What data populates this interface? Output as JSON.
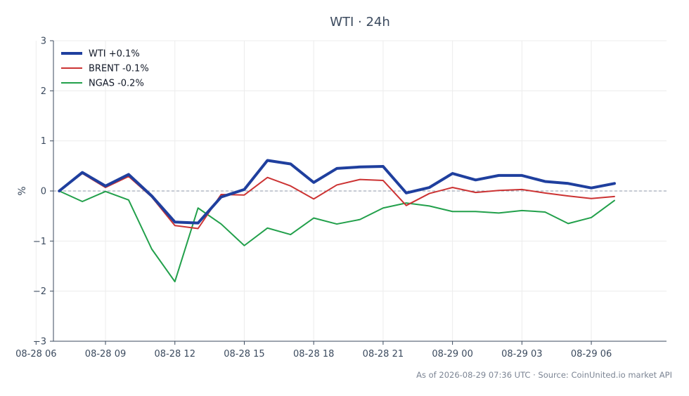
{
  "chart_data": {
    "type": "line",
    "title": "WTI · 24h",
    "ylabel": "%",
    "xlabel": "",
    "ylim": [
      -3,
      3
    ],
    "yticks": [
      3,
      2,
      1,
      0,
      -1,
      -2,
      -3
    ],
    "ytick_labels": [
      "3",
      "2",
      "1",
      "0",
      "−1",
      "−2",
      "−3"
    ],
    "xlim": [
      6.75,
      33.25
    ],
    "xticks": [
      6,
      9,
      12,
      15,
      18,
      21,
      24,
      27,
      30
    ],
    "xtick_labels": [
      "08-28 06",
      "08-28 09",
      "08-28 12",
      "08-28 15",
      "08-28 18",
      "08-28 21",
      "08-29 00",
      "08-29 03",
      "08-29 06"
    ],
    "x": [
      7,
      8,
      9,
      10,
      11,
      12,
      13,
      14,
      15,
      16,
      17,
      18,
      19,
      20,
      21,
      22,
      23,
      24,
      25,
      26,
      27,
      28,
      29,
      30,
      31
    ],
    "grid": true,
    "zero_line": true,
    "legend_position": "top-left",
    "series": [
      {
        "name": "WTI +0.1%",
        "color": "#1f3f9e",
        "values": [
          0.0,
          0.37,
          0.1,
          0.33,
          -0.1,
          -0.62,
          -0.64,
          -0.12,
          0.03,
          0.61,
          0.54,
          0.17,
          0.45,
          0.48,
          0.49,
          -0.04,
          0.07,
          0.35,
          0.22,
          0.31,
          0.31,
          0.19,
          0.15,
          0.06,
          0.15
        ]
      },
      {
        "name": "BRENT -0.1%",
        "color": "#cc3333",
        "values": [
          0.0,
          0.35,
          0.07,
          0.29,
          -0.12,
          -0.69,
          -0.75,
          -0.07,
          -0.08,
          0.27,
          0.1,
          -0.16,
          0.12,
          0.23,
          0.21,
          -0.29,
          -0.05,
          0.07,
          -0.03,
          0.01,
          0.03,
          -0.04,
          -0.1,
          -0.15,
          -0.11
        ]
      },
      {
        "name": "NGAS -0.2%",
        "color": "#22a04b",
        "values": [
          0.0,
          -0.21,
          -0.01,
          -0.18,
          -1.16,
          -1.81,
          -0.34,
          -0.66,
          -1.09,
          -0.74,
          -0.87,
          -0.54,
          -0.66,
          -0.57,
          -0.34,
          -0.24,
          -0.3,
          -0.41,
          -0.41,
          -0.44,
          -0.39,
          -0.42,
          -0.65,
          -0.53,
          -0.19
        ]
      }
    ]
  },
  "footer": {
    "source_text": "As of 2026-08-29 07:36 UTC · Source: CoinUnited.io market API"
  }
}
